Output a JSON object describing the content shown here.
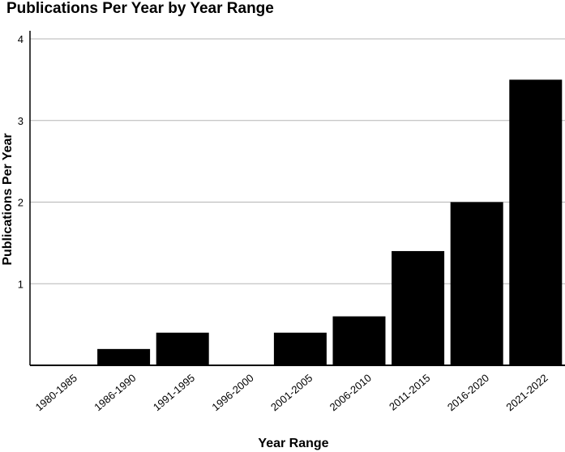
{
  "chart_data": {
    "type": "bar",
    "title": "Publications Per Year by Year Range",
    "xlabel": "Year Range",
    "ylabel": "Publications Per Year",
    "categories": [
      "1980-1985",
      "1986-1990",
      "1991-1995",
      "1996-2000",
      "2001-2005",
      "2006-2010",
      "2011-2015",
      "2016-2020",
      "2021-2022"
    ],
    "values": [
      0,
      0.2,
      0.4,
      0,
      0.4,
      0.6,
      1.4,
      2.0,
      3.5
    ],
    "yticks": [
      "1",
      "2",
      "3",
      "4"
    ],
    "ylim": [
      0,
      4
    ],
    "grid": true,
    "bar_color": "#000000",
    "grid_color": "#b5b5b5"
  }
}
